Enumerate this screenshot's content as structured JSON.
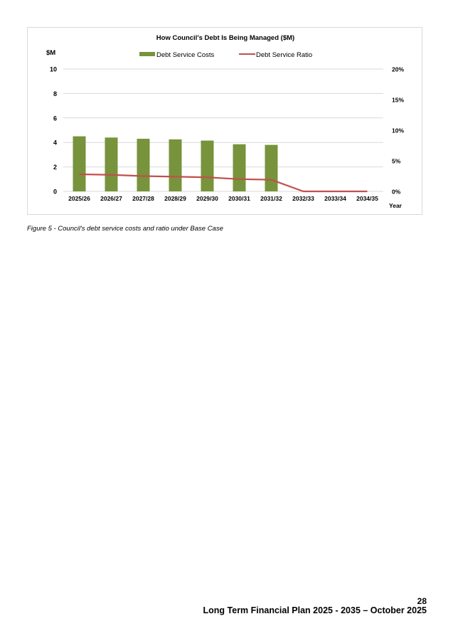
{
  "chart_data": {
    "type": "bar",
    "title": "How Council's Debt Is Being Managed ($M)",
    "y_unit_label": "$M",
    "xlabel": "Year",
    "categories": [
      "2025/26",
      "2026/27",
      "2027/28",
      "2028/29",
      "2029/30",
      "2030/31",
      "2031/32",
      "2032/33",
      "2033/34",
      "2034/35"
    ],
    "series": [
      {
        "name": "Debt Service Costs",
        "kind": "bar",
        "axis": "left",
        "color": "#77933c",
        "values": [
          4.5,
          4.4,
          4.3,
          4.25,
          4.15,
          3.85,
          3.8,
          0,
          0,
          0
        ]
      },
      {
        "name": "Debt Service Ratio",
        "kind": "line",
        "axis": "right",
        "color": "#c0504d",
        "values": [
          2.8,
          2.7,
          2.5,
          2.4,
          2.3,
          2.0,
          1.9,
          0,
          0,
          0
        ]
      }
    ],
    "y_left": {
      "min": 0,
      "max": 10,
      "ticks": [
        "0",
        "2",
        "4",
        "6",
        "8",
        "10"
      ]
    },
    "y_right": {
      "min": 0,
      "max": 20,
      "ticks": [
        "0%",
        "5%",
        "10%",
        "15%",
        "20%"
      ]
    },
    "grid": true,
    "legend_position": "top"
  },
  "caption": "Figure 5 - Council's debt service costs and ratio under Base Case",
  "footer": {
    "page_number": "28",
    "document_title": "Long Term Financial Plan 2025 - 2035 – October 2025"
  }
}
